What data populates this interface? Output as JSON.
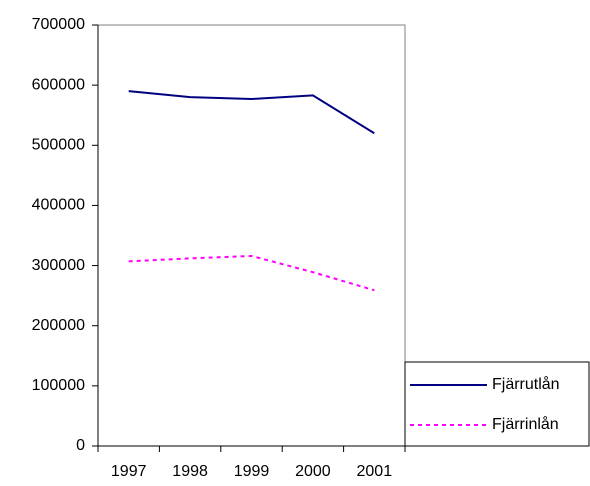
{
  "chart_data": {
    "type": "line",
    "categories": [
      "1997",
      "1998",
      "1999",
      "2000",
      "2001"
    ],
    "series": [
      {
        "name": "Fjärrutlån",
        "color": "#000080",
        "dashed": false,
        "values": [
          590000,
          580000,
          577000,
          583000,
          520000
        ]
      },
      {
        "name": "Fjärrinlån",
        "color": "#ff00ff",
        "dashed": true,
        "values": [
          307000,
          312000,
          316000,
          289000,
          259000
        ]
      }
    ],
    "ylim": [
      0,
      700000
    ],
    "yticks": [
      0,
      100000,
      200000,
      300000,
      400000,
      500000,
      600000,
      700000
    ],
    "legend": "bottom-right"
  }
}
